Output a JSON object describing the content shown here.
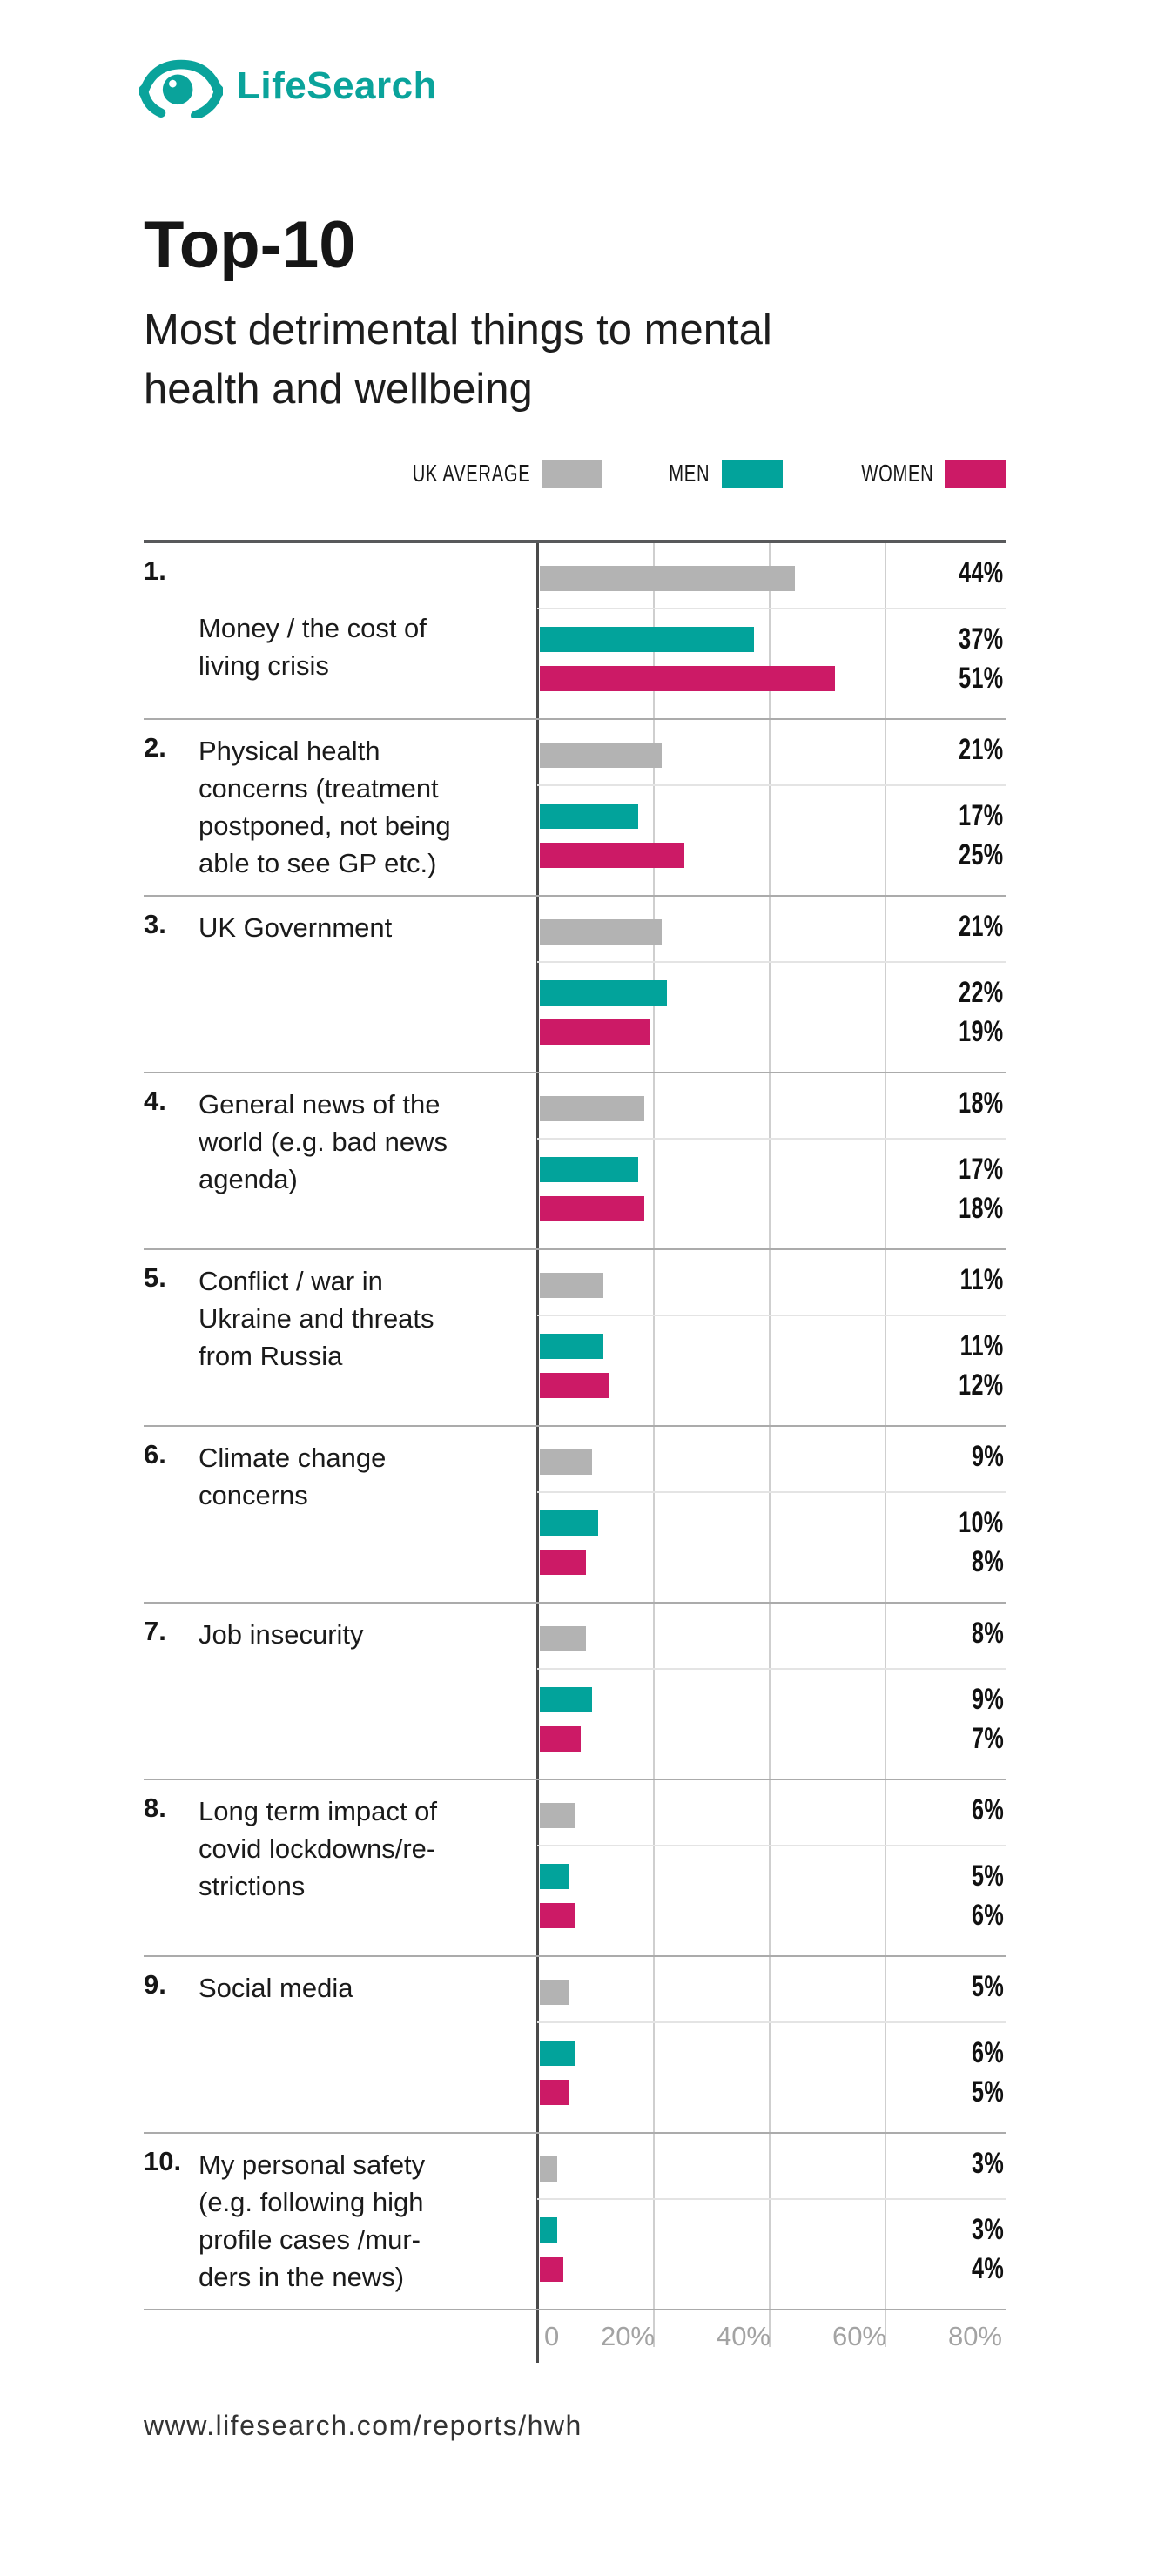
{
  "logo": {
    "text": "LifeSearch",
    "color": "#0aa39b"
  },
  "header": {
    "title": "Top-10",
    "subtitle": "Most detrimental things to mental\nhealth and wellbeing"
  },
  "legend": [
    {
      "label": "UK AVERAGE",
      "color": "#b3b3b3"
    },
    {
      "label": "MEN",
      "color": "#02a39b"
    },
    {
      "label": "WOMEN",
      "color": "#cc1a66"
    }
  ],
  "chart_data": {
    "type": "bar",
    "orientation": "horizontal",
    "title": "Top-10 Most detrimental things to mental health and wellbeing",
    "categories": [
      "Money / the cost of living crisis",
      "Physical health concerns (treatment postponed, not being able to see GP etc.)",
      "UK Government",
      "General news of the world (e.g. bad news agenda)",
      "Conflict / war in Ukraine and threats from Russia",
      "Climate change concerns",
      "Job insecurity",
      "Long term impact of covid lockdowns/restrictions",
      "Social media",
      "My personal safety (e.g. following high profile cases /murders in the news)"
    ],
    "series": [
      {
        "name": "UK Average",
        "color": "#b3b3b3",
        "values": [
          44,
          21,
          21,
          18,
          11,
          9,
          8,
          6,
          5,
          3
        ]
      },
      {
        "name": "Men",
        "color": "#02a39b",
        "values": [
          37,
          17,
          22,
          17,
          11,
          10,
          9,
          5,
          6,
          3
        ]
      },
      {
        "name": "Women",
        "color": "#cc1a66",
        "values": [
          51,
          25,
          19,
          18,
          12,
          8,
          7,
          6,
          5,
          4
        ]
      }
    ],
    "x_ticks": [
      "0",
      "20%",
      "40%",
      "60%",
      "80%"
    ],
    "xlim": [
      0,
      80
    ],
    "grid": true,
    "legend_position": "top-right"
  },
  "rows": [
    {
      "rank": "1.",
      "label": "Money / the cost of\nliving crisis",
      "uk": 44,
      "men": 37,
      "women": 51,
      "uk_label": "44%",
      "men_label": "37%",
      "women_label": "51%"
    },
    {
      "rank": "2.",
      "label": "Physical health\nconcerns (treatment\npostponed, not being\nable to see GP etc.)",
      "uk": 21,
      "men": 17,
      "women": 25,
      "uk_label": "21%",
      "men_label": "17%",
      "women_label": "25%"
    },
    {
      "rank": "3.",
      "label": "UK Government",
      "uk": 21,
      "men": 22,
      "women": 19,
      "uk_label": "21%",
      "men_label": "22%",
      "women_label": "19%"
    },
    {
      "rank": "4.",
      "label": "General news of the\nworld (e.g. bad news\nagenda)",
      "uk": 18,
      "men": 17,
      "women": 18,
      "uk_label": "18%",
      "men_label": "17%",
      "women_label": "18%"
    },
    {
      "rank": "5.",
      "label": "Conflict / war in\nUkraine and threats\nfrom Russia",
      "uk": 11,
      "men": 11,
      "women": 12,
      "uk_label": "11%",
      "men_label": "11%",
      "women_label": "12%"
    },
    {
      "rank": "6.",
      "label": "Climate change\nconcerns",
      "uk": 9,
      "men": 10,
      "women": 8,
      "uk_label": "9%",
      "men_label": "10%",
      "women_label": "8%"
    },
    {
      "rank": "7.",
      "label": "Job insecurity",
      "uk": 8,
      "men": 9,
      "women": 7,
      "uk_label": "8%",
      "men_label": "9%",
      "women_label": "7%"
    },
    {
      "rank": "8.",
      "label": "Long term impact of\ncovid lockdowns/re-\nstrictions",
      "uk": 6,
      "men": 5,
      "women": 6,
      "uk_label": "6%",
      "men_label": "5%",
      "women_label": "6%"
    },
    {
      "rank": "9.",
      "label": "Social media",
      "uk": 5,
      "men": 6,
      "women": 5,
      "uk_label": "5%",
      "men_label": "6%",
      "women_label": "5%"
    },
    {
      "rank": "10.",
      "label": "My personal safety\n(e.g. following high\nprofile cases /mur-\nders in the news)",
      "uk": 3,
      "men": 3,
      "women": 4,
      "uk_label": "3%",
      "men_label": "3%",
      "women_label": "4%"
    }
  ],
  "axis": {
    "tick_0": "0",
    "tick_20": "20%",
    "tick_40": "40%",
    "tick_60": "60%",
    "tick_80": "80%"
  },
  "footer": {
    "url": "www.lifesearch.com/reports/hwh"
  },
  "colors": {
    "brand_teal": "#0aa39b",
    "bar_gray": "#b3b3b3",
    "bar_teal": "#02a39b",
    "bar_pink": "#cc1a66",
    "axis_dark": "#4a4a4a",
    "gridline": "#cfcfcf",
    "tick_text": "#a3a3a3"
  }
}
